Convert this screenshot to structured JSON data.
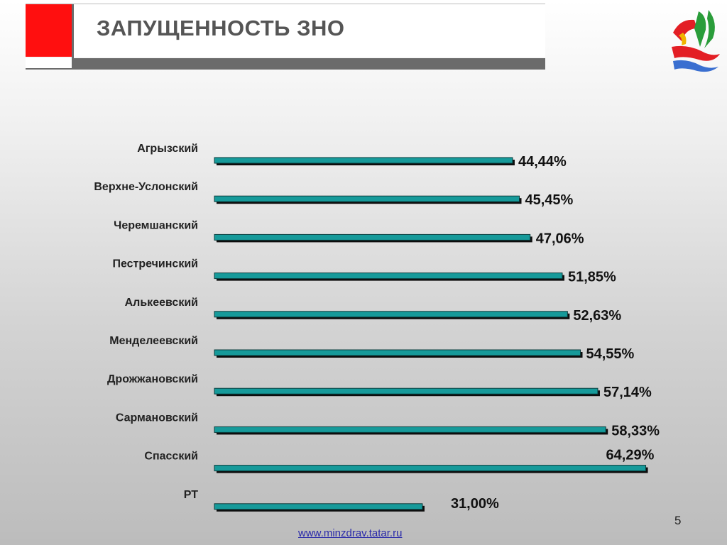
{
  "header": {
    "title": "ЗАПУЩЕННОСТЬ ЗНО",
    "logo_icon": "tatarstan-health-logo-icon"
  },
  "chart_data": {
    "type": "bar",
    "orientation": "horizontal",
    "categories": [
      "Агрызский",
      "Верхне-Услонский",
      "Черемшанский",
      "Пестречинский",
      "Алькеевский",
      "Менделеевский",
      "Дрожжановский",
      "Сармановский",
      "Спасский",
      "РТ"
    ],
    "values": [
      44.44,
      45.45,
      47.06,
      51.85,
      52.63,
      54.55,
      57.14,
      58.33,
      64.29,
      31.0
    ],
    "value_labels": [
      "44,44%",
      "45,45%",
      "47,06%",
      "51,85%",
      "52,63%",
      "54,55%",
      "57,14%",
      "58,33%",
      "64,29%",
      "31,00%"
    ],
    "title": "",
    "xlabel": "",
    "ylabel": "",
    "xlim": [
      0,
      65
    ],
    "grid": false,
    "colors": {
      "bar_fill": "#169a9a",
      "bar_shadow": "#0d0d0d"
    }
  },
  "footer": {
    "slide_number": "5",
    "link": "www.minzdrav.tatar.ru"
  }
}
